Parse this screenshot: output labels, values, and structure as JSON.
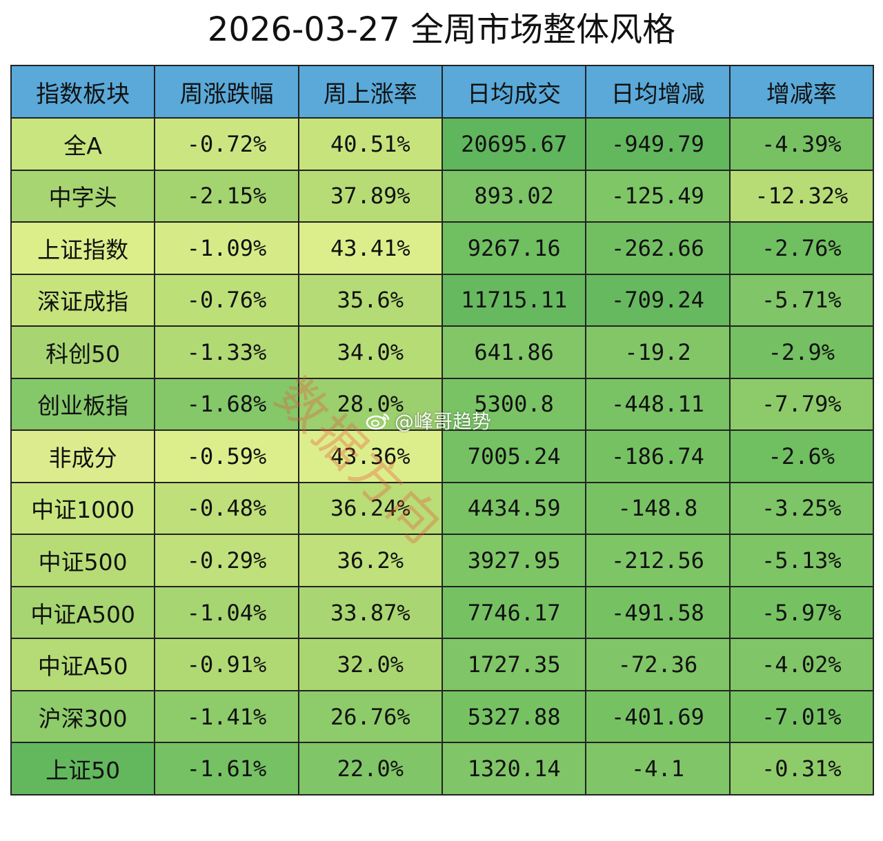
{
  "page": {
    "title": "2026-03-27 全周市场整体风格"
  },
  "chart_data": {
    "type": "table",
    "title": "2026-03-27 全周市场整体风格",
    "columns": [
      "指数板块",
      "周涨跌幅",
      "周上涨率",
      "日均成交",
      "日均增减",
      "增减率"
    ],
    "rows": [
      [
        "全A",
        "-0.72%",
        "40.51%",
        "20695.67",
        "-949.79",
        "-4.39%"
      ],
      [
        "中字头",
        "-2.15%",
        "37.89%",
        "893.02",
        "-125.49",
        "-12.32%"
      ],
      [
        "上证指数",
        "-1.09%",
        "43.41%",
        "9267.16",
        "-262.66",
        "-2.76%"
      ],
      [
        "深证成指",
        "-0.76%",
        "35.6%",
        "11715.11",
        "-709.24",
        "-5.71%"
      ],
      [
        "科创50",
        "-1.33%",
        "34.0%",
        "641.86",
        "-19.2",
        "-2.9%"
      ],
      [
        "创业板指",
        "-1.68%",
        "28.0%",
        "5300.8",
        "-448.11",
        "-7.79%"
      ],
      [
        "非成分",
        "-0.59%",
        "43.36%",
        "7005.24",
        "-186.74",
        "-2.6%"
      ],
      [
        "中证1000",
        "-0.48%",
        "36.24%",
        "4434.59",
        "-148.8",
        "-3.25%"
      ],
      [
        "中证500",
        "-0.29%",
        "36.2%",
        "3927.95",
        "-212.56",
        "-5.13%"
      ],
      [
        "中证A500",
        "-1.04%",
        "33.87%",
        "7746.17",
        "-491.58",
        "-5.97%"
      ],
      [
        "中证A50",
        "-0.91%",
        "32.0%",
        "1727.35",
        "-72.36",
        "-4.02%"
      ],
      [
        "沪深300",
        "-1.41%",
        "26.76%",
        "5327.88",
        "-401.69",
        "-7.01%"
      ],
      [
        "上证50",
        "-1.61%",
        "22.0%",
        "1320.14",
        "-4.1",
        "-0.31%"
      ]
    ],
    "cell_colors": [
      [
        "#c9e57f",
        "#cbe681",
        "#c6e37c",
        "#60b65d",
        "#63b85e",
        "#77c163"
      ],
      [
        "#a6d571",
        "#a4d470",
        "#b7dc76",
        "#7cc466",
        "#7fc667",
        "#b7dc76"
      ],
      [
        "#dbee8a",
        "#d6eb87",
        "#dcee8b",
        "#70bf61",
        "#72bf62",
        "#70bf61"
      ],
      [
        "#c6e37c",
        "#bcdf78",
        "#b4db75",
        "#67b95f",
        "#66b95f",
        "#80c567"
      ],
      [
        "#a8d571",
        "#b1d974",
        "#b6dc76",
        "#82c668",
        "#82c668",
        "#74c062"
      ],
      [
        "#84c869",
        "#84c869",
        "#9ccf6d",
        "#79c365",
        "#79c365",
        "#8dcb6a"
      ],
      [
        "#dceb8d",
        "#dcee8b",
        "#dcee8b",
        "#75c163",
        "#76c263",
        "#70bf61"
      ],
      [
        "#c8e57f",
        "#bedf79",
        "#b9dd77",
        "#7ac365",
        "#78c264",
        "#7dc566"
      ],
      [
        "#b7dc76",
        "#bfe07a",
        "#bfe07a",
        "#7ec566",
        "#7ec566",
        "#7ec566"
      ],
      [
        "#a7d571",
        "#a7d571",
        "#a9d672",
        "#76c263",
        "#76c263",
        "#76c263"
      ],
      [
        "#b4db75",
        "#b0d974",
        "#aad672",
        "#80c567",
        "#80c567",
        "#80c567"
      ],
      [
        "#8ecb6a",
        "#8ecb6a",
        "#8ecb6a",
        "#76c263",
        "#76c263",
        "#76c263"
      ],
      [
        "#63b85e",
        "#75c163",
        "#80c567",
        "#80c567",
        "#80c567",
        "#8ecb6a"
      ]
    ],
    "header_color": "#5aa9d9"
  },
  "watermark": {
    "text": "数据方向",
    "handle": "@峰哥趋势",
    "icon": "weibo-icon"
  }
}
